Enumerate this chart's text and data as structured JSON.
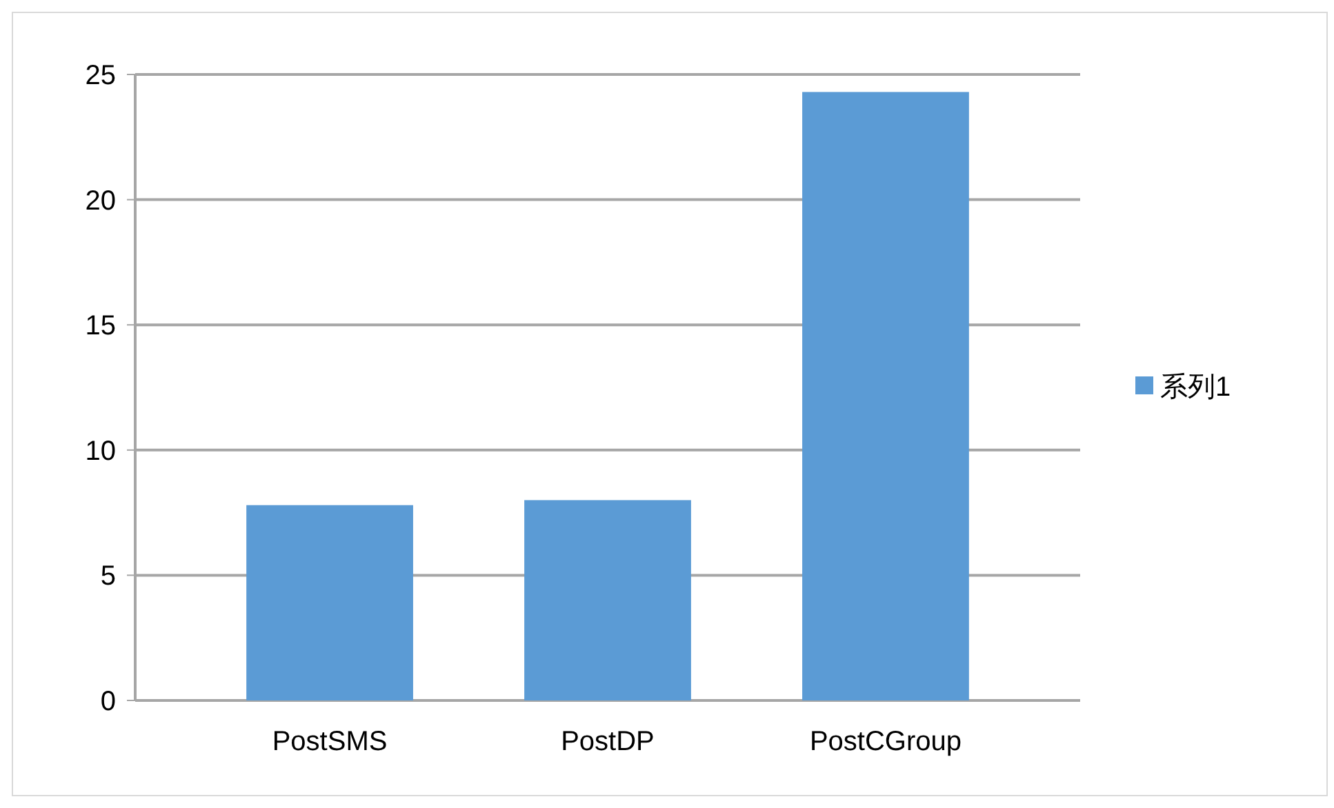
{
  "chart_data": {
    "type": "bar",
    "categories": [
      "PostSMS",
      "PostDP",
      "PostCGroup"
    ],
    "series": [
      {
        "name": "系列1",
        "color": "#5b9bd5",
        "values": [
          7.8,
          8.0,
          24.3
        ]
      }
    ],
    "ylim": [
      0,
      25
    ],
    "yticks": [
      0,
      5,
      10,
      15,
      20,
      25
    ],
    "grid": "y",
    "legend": "right"
  }
}
